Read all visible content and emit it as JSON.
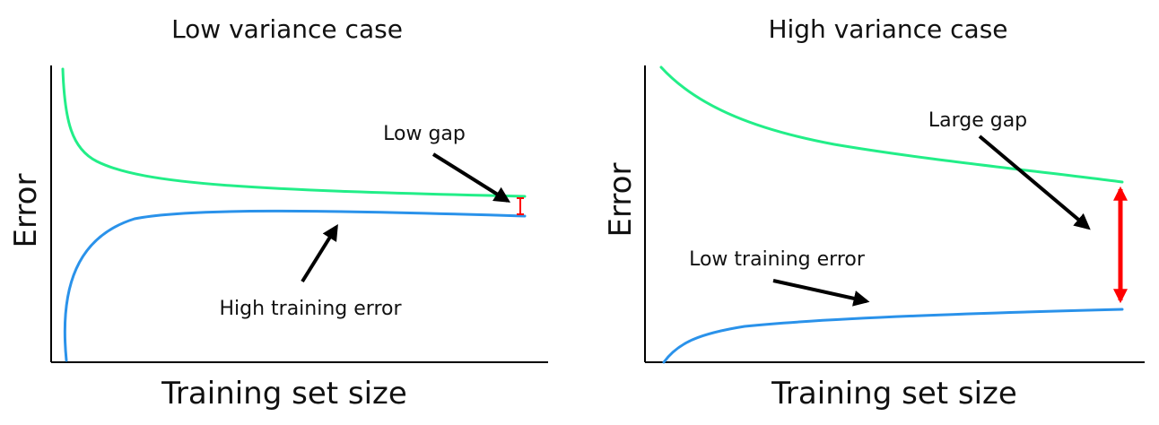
{
  "colors": {
    "validation_curve": "#22ee88",
    "training_curve": "#2a92ea",
    "gap_marker": "#ff0000",
    "pointer": "#000000",
    "axis": "#000000"
  },
  "panels": [
    {
      "title": "Low variance case",
      "xlabel": "Training set size",
      "ylabel": "Error",
      "annotations": {
        "gap": "Low gap",
        "training": "High training error"
      }
    },
    {
      "title": "High variance case",
      "xlabel": "Training set size",
      "ylabel": "Error",
      "annotations": {
        "gap": "Large gap",
        "training": "Low training error"
      }
    }
  ]
}
